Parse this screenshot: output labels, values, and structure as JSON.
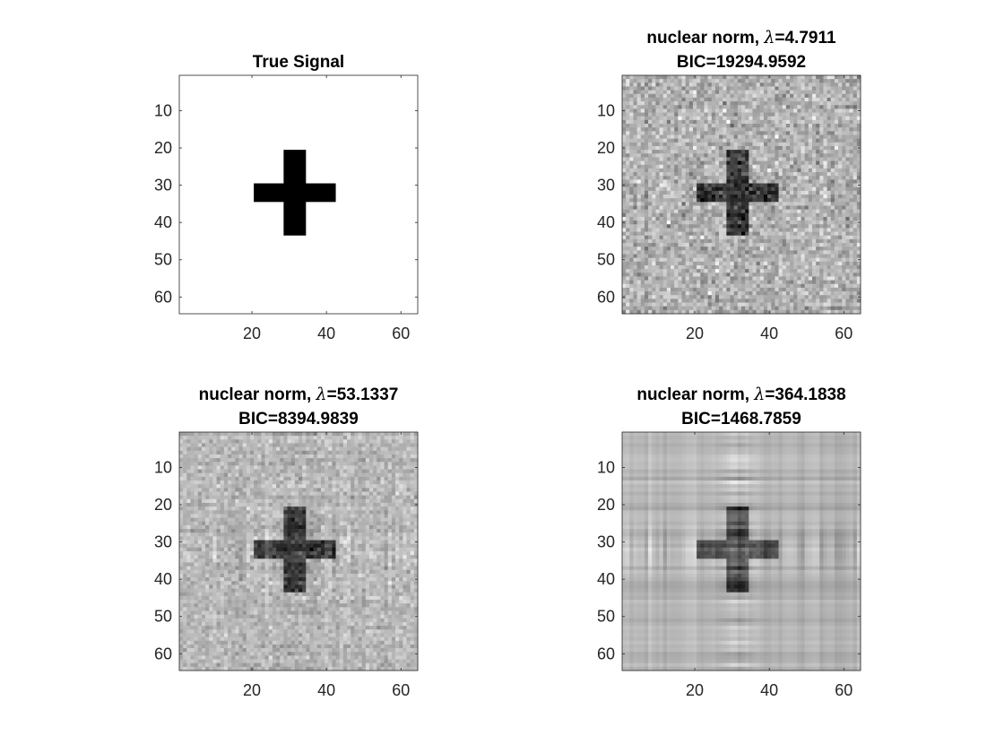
{
  "chart_data": [
    {
      "type": "heatmap",
      "colormap": "gray",
      "title": "True Signal",
      "image_size": [
        64,
        64
      ],
      "xlim": [
        0.5,
        64.5
      ],
      "ylim": [
        0.5,
        64.5
      ],
      "xticks": [
        20,
        40,
        60
      ],
      "yticks": [
        10,
        20,
        30,
        40,
        50,
        60
      ],
      "xticklabels": [
        "20",
        "40",
        "60"
      ],
      "yticklabels": [
        "10",
        "20",
        "30",
        "40",
        "50",
        "60"
      ],
      "content": "black cross on white background",
      "cross": {
        "vertical_bar": {
          "rows": [
            21,
            43
          ],
          "cols": [
            29,
            34
          ]
        },
        "horizontal_bar": {
          "rows": [
            30,
            34
          ],
          "cols": [
            21,
            42
          ]
        }
      }
    },
    {
      "type": "heatmap",
      "colormap": "gray",
      "title_prefix": "nuclear norm, ",
      "lambda_symbol": "λ",
      "lambda_value": "=4.7911",
      "title_line2": "BIC=19294.9592",
      "lambda": 4.7911,
      "BIC": 19294.9592,
      "image_size": [
        64,
        64
      ],
      "xticks": [
        20,
        40,
        60
      ],
      "yticks": [
        10,
        20,
        30,
        40,
        50,
        60
      ],
      "xticklabels": [
        "20",
        "40",
        "60"
      ],
      "yticklabels": [
        "10",
        "20",
        "30",
        "40",
        "50",
        "60"
      ]
    },
    {
      "type": "heatmap",
      "colormap": "gray",
      "title_prefix": "nuclear norm, ",
      "lambda_symbol": "λ",
      "lambda_value": "=53.1337",
      "title_line2": "BIC=8394.9839",
      "lambda": 53.1337,
      "BIC": 8394.9839,
      "image_size": [
        64,
        64
      ],
      "xticks": [
        20,
        40,
        60
      ],
      "yticks": [
        10,
        20,
        30,
        40,
        50,
        60
      ],
      "xticklabels": [
        "20",
        "40",
        "60"
      ],
      "yticklabels": [
        "10",
        "20",
        "30",
        "40",
        "50",
        "60"
      ]
    },
    {
      "type": "heatmap",
      "colormap": "gray",
      "title_prefix": "nuclear norm, ",
      "lambda_symbol": "λ",
      "lambda_value": "=364.1838",
      "title_line2": "BIC=1468.7859",
      "lambda": 364.1838,
      "BIC": 1468.7859,
      "image_size": [
        64,
        64
      ],
      "xticks": [
        20,
        40,
        60
      ],
      "yticks": [
        10,
        20,
        30,
        40,
        50,
        60
      ],
      "xticklabels": [
        "20",
        "40",
        "60"
      ],
      "yticklabels": [
        "10",
        "20",
        "30",
        "40",
        "50",
        "60"
      ]
    }
  ]
}
